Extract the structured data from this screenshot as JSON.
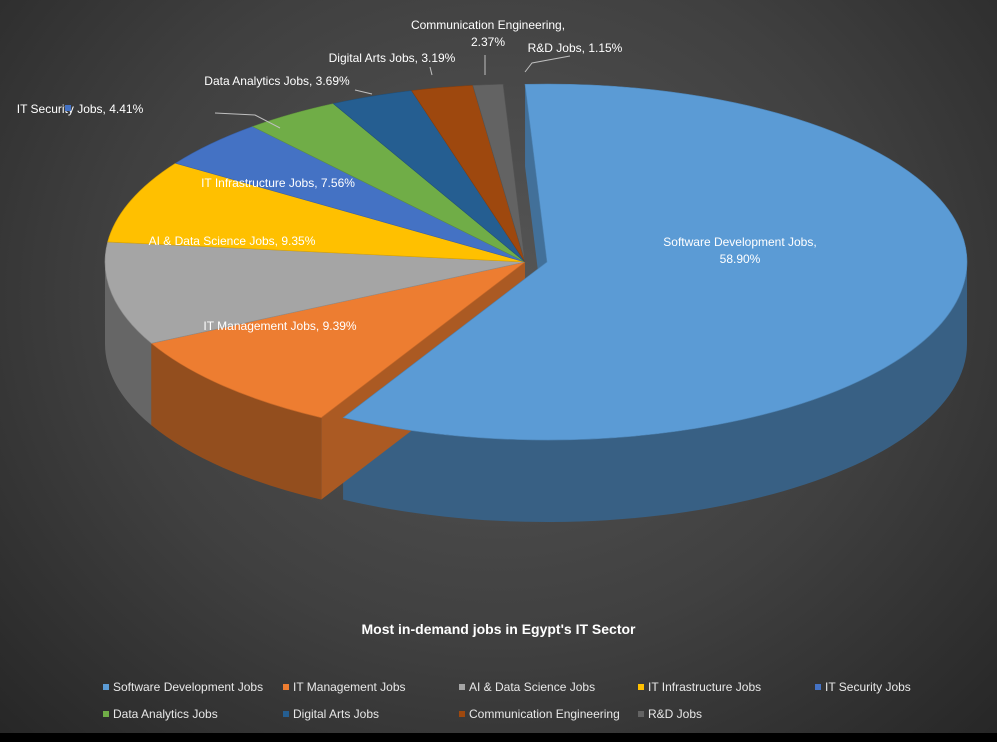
{
  "chart_data": {
    "type": "pie",
    "title": "Most in-demand jobs in Egypt's IT Sector",
    "legend_position": "bottom",
    "three_d": true,
    "slices": [
      {
        "name": "Software Development Jobs",
        "value": 58.9,
        "label": "Software Development Jobs,",
        "value_label": "58.90%",
        "color": "#5b9bd5"
      },
      {
        "name": "IT Management Jobs",
        "value": 9.39,
        "label": "IT Management Jobs, 9.39%",
        "color": "#ed7d31"
      },
      {
        "name": "AI & Data Science Jobs",
        "value": 9.35,
        "label": "AI & Data Science Jobs, 9.35%",
        "color": "#a5a5a5"
      },
      {
        "name": "IT Infrastructure Jobs",
        "value": 7.56,
        "label": "IT Infrastructure Jobs, 7.56%",
        "color": "#ffc000"
      },
      {
        "name": "IT Security Jobs",
        "value": 4.41,
        "label": "IT Security Jobs, 4.41%",
        "color": "#4472c4"
      },
      {
        "name": "Data Analytics Jobs",
        "value": 3.69,
        "label": "Data Analytics Jobs, 3.69%",
        "color": "#70ad47"
      },
      {
        "name": "Digital Arts Jobs",
        "value": 3.19,
        "label": "Digital Arts Jobs, 3.19%",
        "color": "#255e91"
      },
      {
        "name": "Communication Engineering",
        "value": 2.37,
        "label": "Communication Engineering,",
        "value_label": "2.37%",
        "color": "#9e480e"
      },
      {
        "name": "R&D Jobs",
        "value": 1.15,
        "label": "R&D Jobs, 1.15%",
        "color": "#636363"
      }
    ]
  }
}
